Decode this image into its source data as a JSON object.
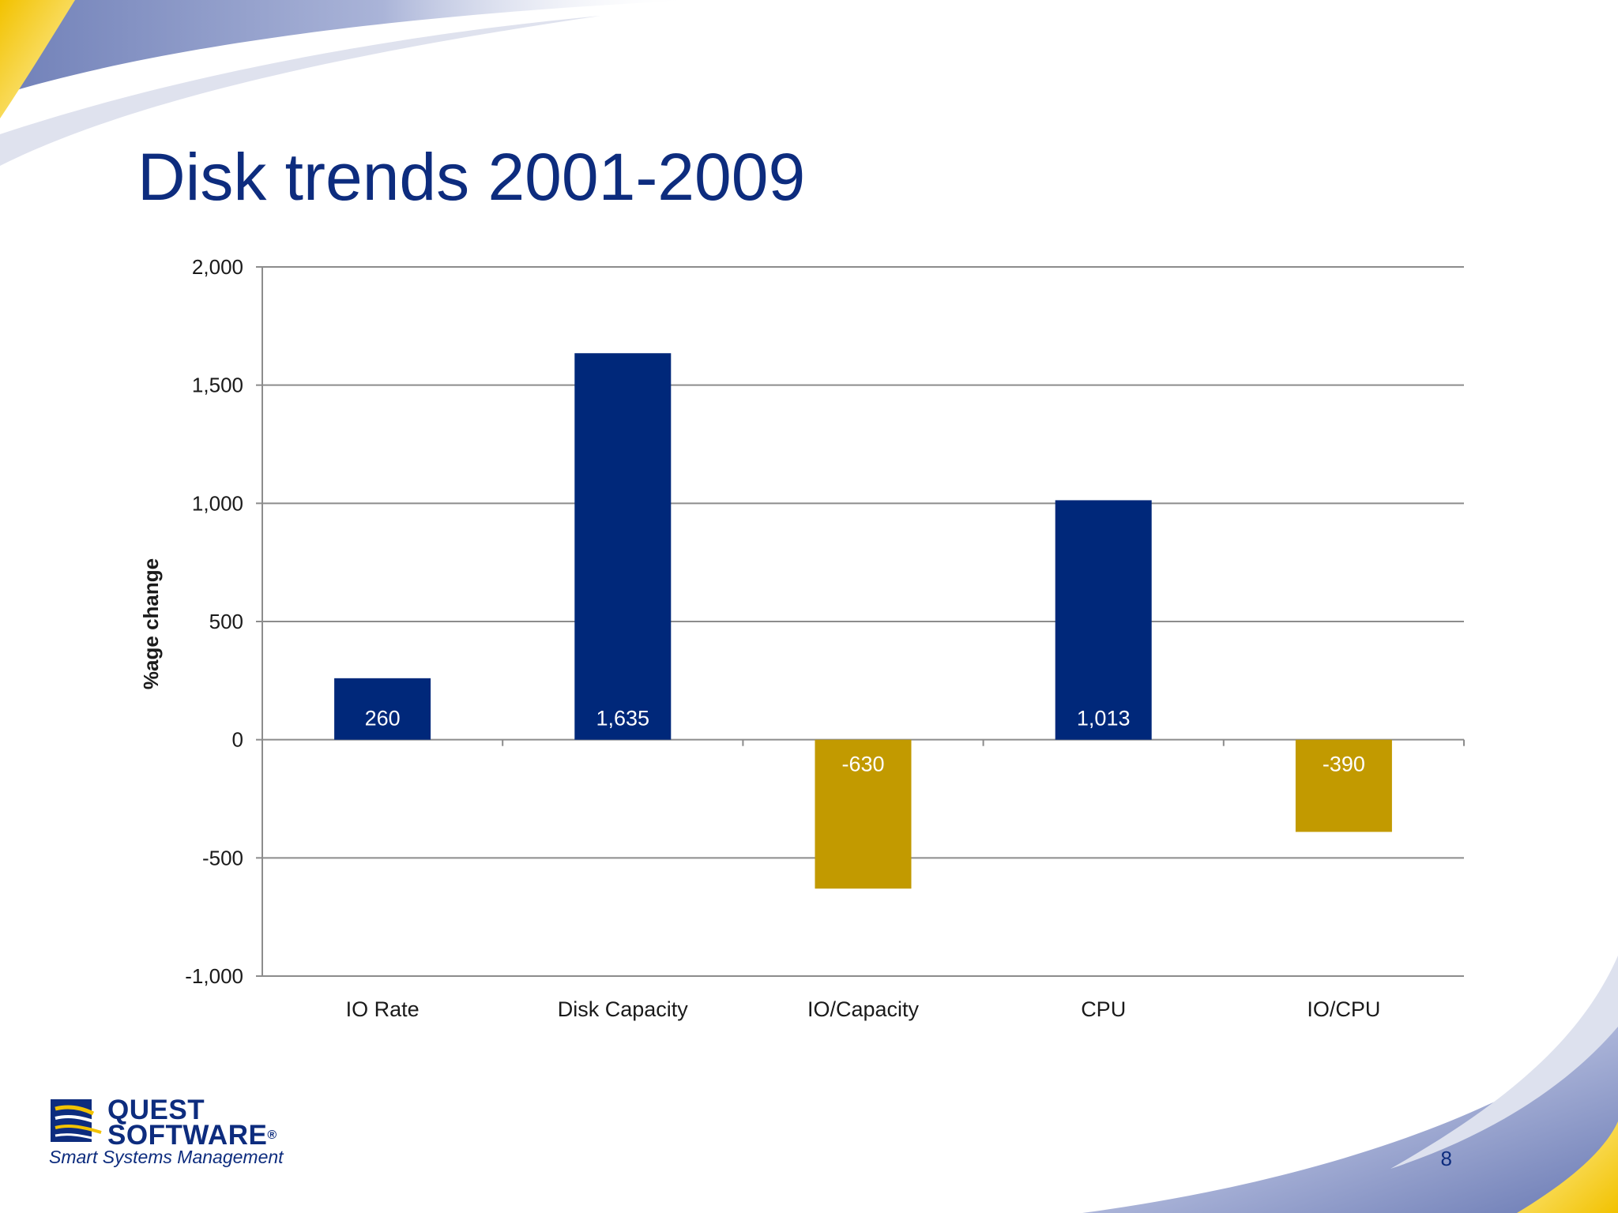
{
  "slide": {
    "title": "Disk trends 2001-2009",
    "page_number": "8"
  },
  "logo": {
    "line1": "QUEST",
    "line2": "SOFTWARE",
    "registered": "®",
    "tagline": "Smart Systems Management"
  },
  "colors": {
    "title": "#0d2c7e",
    "positive_bar": "#00287a",
    "negative_bar": "#c29a00",
    "gridline": "#8c8c8c"
  },
  "chart_data": {
    "type": "bar",
    "title": "",
    "xlabel": "",
    "ylabel": "%age change",
    "ylim": [
      -1000,
      2000
    ],
    "yticks": [
      -1000,
      -500,
      0,
      500,
      1000,
      1500,
      2000
    ],
    "ytick_labels": [
      "-1,000",
      "-500",
      "0",
      "500",
      "1,000",
      "1,500",
      "2,000"
    ],
    "grid": true,
    "categories": [
      "IO Rate",
      "Disk Capacity",
      "IO/Capacity",
      "CPU",
      "IO/CPU"
    ],
    "values": [
      260,
      1635,
      -630,
      1013,
      -390
    ],
    "data_labels": [
      "260",
      "1,635",
      "-630",
      "1,013",
      "-390"
    ]
  }
}
